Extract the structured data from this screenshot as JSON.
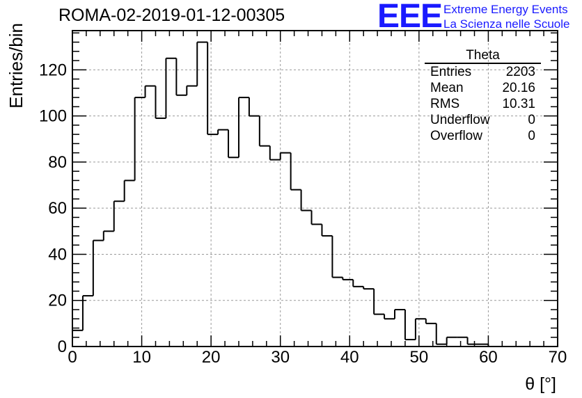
{
  "header": {
    "run_title": "ROMA-02-2019-01-12-00305",
    "logo_text": "EEE",
    "tagline_line1": "Extreme Energy Events",
    "tagline_line2": "La Scienza nelle Scuole"
  },
  "stats_box": {
    "title": "Theta",
    "rows": [
      {
        "label": "Entries",
        "value": "2203"
      },
      {
        "label": "Mean",
        "value": "20.16"
      },
      {
        "label": "RMS",
        "value": "10.31"
      },
      {
        "label": "Underflow",
        "value": "0"
      },
      {
        "label": "Overflow",
        "value": "0"
      }
    ]
  },
  "colors": {
    "logo": "#1a1aff",
    "histogram_line": "#000000",
    "grid": "#999999"
  },
  "chart_data": {
    "type": "histogram",
    "title": "ROMA-02-2019-01-12-00305",
    "xlabel": "θ [°]",
    "ylabel": "Entries/bin",
    "xlim": [
      0,
      70
    ],
    "ylim": [
      0,
      137
    ],
    "x_ticks": [
      0,
      10,
      20,
      30,
      40,
      50,
      60,
      70
    ],
    "y_ticks": [
      0,
      20,
      40,
      60,
      80,
      100,
      120
    ],
    "grid": true,
    "bin_width": 1.5,
    "bin_start": 0,
    "values": [
      7,
      22,
      46,
      50,
      63,
      72,
      108,
      113,
      99,
      125,
      109,
      113,
      132,
      92,
      94,
      82,
      108,
      100,
      87,
      81,
      84,
      68,
      59,
      53,
      48,
      30,
      29,
      26,
      25,
      14,
      12,
      16,
      3,
      12,
      10,
      1,
      4,
      4,
      1,
      1,
      0,
      0,
      0,
      0,
      0,
      0
    ]
  }
}
